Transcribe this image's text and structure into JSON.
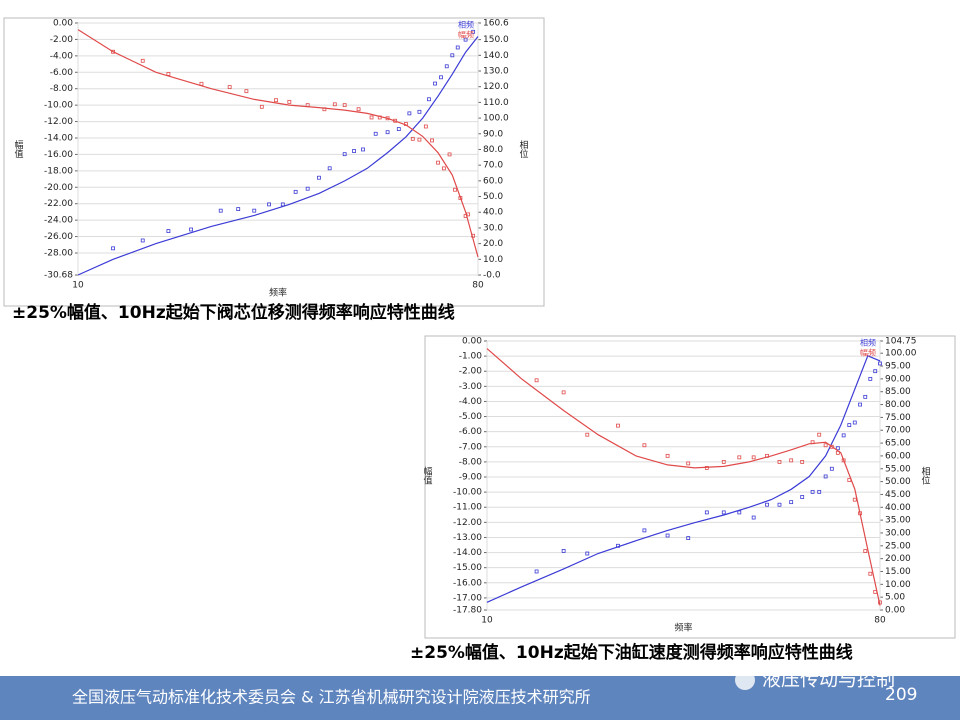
{
  "chart_data": [
    {
      "type": "line",
      "caption": "±25%幅值、10Hz起始下阀芯位移测得频率响应特性曲线",
      "x_label": "频率",
      "y_label": "幅值",
      "y2_label": "相位",
      "x_scale": "log",
      "legend": "upper right",
      "grid": true,
      "xlim": [
        10,
        80
      ],
      "xticks": [
        10,
        80
      ],
      "ylim": [
        -30.68,
        0
      ],
      "yticks": [
        {
          "value": 0,
          "label": "0.00"
        },
        {
          "value": -2,
          "label": "-2.00"
        },
        {
          "value": -4,
          "label": "-4.00"
        },
        {
          "value": -6,
          "label": "-6.00"
        },
        {
          "value": -8,
          "label": "-8.00"
        },
        {
          "value": -10,
          "label": "-10.00"
        },
        {
          "value": -12,
          "label": "-12.00"
        },
        {
          "value": -14,
          "label": "-14.00"
        },
        {
          "value": -16,
          "label": "-16.00"
        },
        {
          "value": -18,
          "label": "-18.00"
        },
        {
          "value": -20,
          "label": "-20.00"
        },
        {
          "value": -22,
          "label": "-22.00"
        },
        {
          "value": -24,
          "label": "-24.00"
        },
        {
          "value": -26,
          "label": "-26.00"
        },
        {
          "value": -28,
          "label": "-28.00"
        },
        -30.68
      ],
      "y2lim": [
        0,
        160.6
      ],
      "y2ticks": [
        160.6,
        {
          "value": 150,
          "label": "150.0"
        },
        {
          "value": 140,
          "label": "140.0"
        },
        {
          "value": 130,
          "label": "130.0"
        },
        {
          "value": 120,
          "label": "120.0"
        },
        {
          "value": 110,
          "label": "110.0"
        },
        {
          "value": 100,
          "label": "100.0"
        },
        {
          "value": 90,
          "label": "90.0"
        },
        {
          "value": 80,
          "label": "80.0"
        },
        {
          "value": 70,
          "label": "70.0"
        },
        {
          "value": 60,
          "label": "60.0"
        },
        {
          "value": 50,
          "label": "50.0"
        },
        {
          "value": 40,
          "label": "40.0"
        },
        {
          "value": 30,
          "label": "30.0"
        },
        {
          "value": 20,
          "label": "20.0"
        },
        {
          "value": 10,
          "label": "10.0"
        },
        {
          "value": 0,
          "label": "-0.0"
        }
      ],
      "x": [
        10,
        12,
        15,
        20,
        25,
        30,
        35,
        40,
        45,
        50,
        55,
        60,
        65,
        70,
        75,
        80
      ],
      "series": [
        {
          "name": "相频",
          "color": "#3b3bd6",
          "axis": "y2",
          "values": [
            0,
            10,
            20,
            31,
            38,
            45,
            52,
            60,
            68,
            78,
            88,
            100,
            114,
            128,
            142,
            152
          ],
          "points_x": [
            12,
            14,
            16,
            18,
            21,
            23,
            25,
            27,
            29,
            31,
            33,
            35,
            37,
            40,
            42,
            44,
            47,
            50,
            53,
            56,
            59,
            62,
            64,
            66,
            68,
            70,
            72,
            75,
            78
          ],
          "points": [
            17,
            22,
            28,
            29,
            41,
            42,
            41,
            45,
            45,
            53,
            55,
            62,
            68,
            77,
            79,
            80,
            90,
            91,
            93,
            103,
            104,
            112,
            122,
            126,
            133,
            140,
            145,
            150,
            155
          ]
        },
        {
          "name": "幅频",
          "color": "#e04a4a",
          "values": [
            -0.8,
            -3.5,
            -6,
            -8,
            -9.3,
            -10,
            -10.3,
            -10.6,
            -11,
            -11.6,
            -12.4,
            -13.8,
            -15.8,
            -18.5,
            -23,
            -28.5
          ],
          "points_x": [
            12,
            14,
            16,
            19,
            22,
            24,
            26,
            28,
            30,
            33,
            36,
            38,
            40,
            43,
            46,
            48,
            50,
            52,
            55,
            57,
            59,
            61,
            63,
            65,
            67,
            69,
            71,
            73,
            75,
            76,
            78
          ],
          "points": [
            -3.5,
            -4.6,
            -6.2,
            -7.4,
            -7.8,
            -8.3,
            -10.2,
            -9.4,
            -9.6,
            -10,
            -10.5,
            -9.9,
            -10,
            -10.5,
            -11.5,
            -11.5,
            -11.6,
            -11.9,
            -12.3,
            -14.1,
            -14.2,
            -12.6,
            -14.3,
            -17,
            -17.7,
            -16,
            -20.3,
            -21.3,
            -23.5,
            -23.3,
            -25.9
          ]
        }
      ]
    },
    {
      "type": "line",
      "caption": "±25%幅值、10Hz起始下油缸速度测得频率响应特性曲线",
      "x_label": "频率",
      "y_label": "幅值",
      "y2_label": "相位",
      "x_scale": "log",
      "legend": "upper right",
      "grid": true,
      "xlim": [
        10,
        80
      ],
      "xticks": [
        10,
        80
      ],
      "ylim": [
        -17.8,
        0
      ],
      "yticks": [
        {
          "value": 0,
          "label": "0.00"
        },
        {
          "value": -1,
          "label": "-1.00"
        },
        {
          "value": -2,
          "label": "-2.00"
        },
        {
          "value": -3,
          "label": "-3.00"
        },
        {
          "value": -4,
          "label": "-4.00"
        },
        {
          "value": -5,
          "label": "-5.00"
        },
        {
          "value": -6,
          "label": "-6.00"
        },
        {
          "value": -7,
          "label": "-7.00"
        },
        {
          "value": -8,
          "label": "-8.00"
        },
        {
          "value": -9,
          "label": "-9.00"
        },
        {
          "value": -10,
          "label": "-10.00"
        },
        {
          "value": -11,
          "label": "-11.00"
        },
        {
          "value": -12,
          "label": "-12.00"
        },
        {
          "value": -13,
          "label": "-13.00"
        },
        {
          "value": -14,
          "label": "-14.00"
        },
        {
          "value": -15,
          "label": "-15.00"
        },
        {
          "value": -16,
          "label": "-16.00"
        },
        {
          "value": -17,
          "label": "-17.00"
        },
        {
          "value": -17.8,
          "label": "-17.80"
        }
      ],
      "y2lim": [
        0,
        104.75
      ],
      "y2ticks": [
        104.75,
        {
          "value": 100,
          "label": "100.00"
        },
        {
          "value": 95,
          "label": "95.00"
        },
        {
          "value": 90,
          "label": "90.00"
        },
        {
          "value": 85,
          "label": "85.00"
        },
        {
          "value": 80,
          "label": "80.00"
        },
        {
          "value": 75,
          "label": "75.00"
        },
        {
          "value": 70,
          "label": "70.00"
        },
        {
          "value": 65,
          "label": "65.00"
        },
        {
          "value": 60,
          "label": "60.00"
        },
        {
          "value": 55,
          "label": "55.00"
        },
        {
          "value": 50,
          "label": "50.00"
        },
        {
          "value": 45,
          "label": "45.00"
        },
        {
          "value": 40,
          "label": "40.00"
        },
        {
          "value": 35,
          "label": "35.00"
        },
        {
          "value": 30,
          "label": "30.00"
        },
        {
          "value": 25,
          "label": "25.00"
        },
        {
          "value": 20,
          "label": "20.00"
        },
        {
          "value": 15,
          "label": "15.00"
        },
        {
          "value": 10,
          "label": "10.00"
        },
        {
          "value": 5,
          "label": "5.00"
        },
        {
          "value": 0,
          "label": "0.00"
        }
      ],
      "x": [
        10,
        12,
        15,
        18,
        22,
        26,
        30,
        35,
        40,
        45,
        50,
        55,
        60,
        65,
        70,
        75,
        80
      ],
      "series": [
        {
          "name": "相频",
          "color": "#3b3bd6",
          "axis": "y2",
          "values": [
            3,
            9,
            16,
            22,
            27,
            31,
            34,
            37,
            40,
            43,
            47,
            52,
            60,
            72,
            86,
            99,
            97
          ],
          "points_x": [
            13,
            15,
            17,
            20,
            23,
            26,
            29,
            32,
            35,
            38,
            41,
            44,
            47,
            50,
            53,
            56,
            58,
            60,
            62,
            64,
            66,
            68,
            70,
            72,
            74,
            76,
            78,
            80
          ],
          "points": [
            15,
            23,
            22,
            25,
            31,
            29,
            28,
            38,
            38,
            38,
            36,
            41,
            41,
            42,
            44,
            46,
            46,
            52,
            55,
            63,
            68,
            72,
            73,
            80,
            83,
            90,
            93,
            96
          ]
        },
        {
          "name": "幅频",
          "color": "#e04a4a",
          "values": [
            -0.5,
            -2.5,
            -4.6,
            -6.2,
            -7.6,
            -8.2,
            -8.4,
            -8.3,
            -8,
            -7.6,
            -7.2,
            -6.8,
            -6.7,
            -7.4,
            -9.8,
            -13.8,
            -17.5
          ],
          "points_x": [
            13,
            15,
            17,
            20,
            23,
            26,
            29,
            32,
            35,
            38,
            41,
            44,
            47,
            50,
            53,
            56,
            58,
            60,
            62,
            64,
            66,
            68,
            70,
            72,
            74,
            76,
            78,
            80
          ],
          "points": [
            -2.6,
            -3.4,
            -6.2,
            -5.6,
            -6.9,
            -7.6,
            -8.1,
            -8.4,
            -8,
            -7.7,
            -7.7,
            -7.6,
            -8,
            -7.9,
            -8,
            -6.7,
            -6.2,
            -6.9,
            -7,
            -7.4,
            -7.9,
            -9.2,
            -10.5,
            -11.4,
            -13.9,
            -15.4,
            -16.6,
            -17.3
          ]
        }
      ]
    }
  ],
  "footer": {
    "organizations": "全国液压气动标准化技术委员会 & 江苏省机械研究设计院液压技术研究所",
    "account": "液压传动与控制",
    "page": "209"
  }
}
